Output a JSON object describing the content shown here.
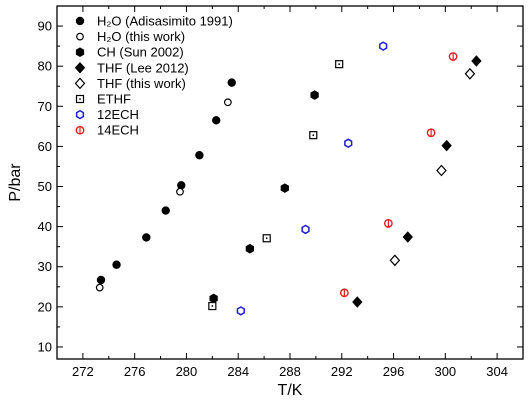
{
  "chart_data": {
    "type": "scatter",
    "xlabel": "T/K",
    "ylabel": "P/bar",
    "xlim": [
      270,
      306
    ],
    "ylim": [
      7,
      95
    ],
    "xticks": [
      272,
      276,
      280,
      284,
      288,
      292,
      296,
      300,
      304
    ],
    "yticks": [
      10,
      20,
      30,
      40,
      50,
      60,
      70,
      80,
      90
    ],
    "grid": false,
    "legend_placement": "top-left",
    "series": [
      {
        "name": "H₂O (Adisasimito 1991)",
        "marker": "circle-filled",
        "color": "#000000",
        "points": [
          [
            273.4,
            26.7
          ],
          [
            274.6,
            30.5
          ],
          [
            276.9,
            37.3
          ],
          [
            278.4,
            44.0
          ],
          [
            279.6,
            50.3
          ],
          [
            281.0,
            57.8
          ],
          [
            282.3,
            66.5
          ],
          [
            283.5,
            75.9
          ]
        ]
      },
      {
        "name": "H₂O (this work)",
        "marker": "circle-open",
        "color": "#000000",
        "points": [
          [
            273.3,
            24.8
          ],
          [
            279.5,
            48.7
          ],
          [
            283.2,
            71.0
          ]
        ]
      },
      {
        "name": "CH (Sun 2002)",
        "marker": "hexagon-filled",
        "color": "#000000",
        "points": [
          [
            282.1,
            22.1
          ],
          [
            284.9,
            34.5
          ],
          [
            287.6,
            49.6
          ],
          [
            289.9,
            72.8
          ]
        ]
      },
      {
        "name": "THF (Lee 2012)",
        "marker": "diamond-filled",
        "color": "#000000",
        "points": [
          [
            293.2,
            21.2
          ],
          [
            297.1,
            37.4
          ],
          [
            300.1,
            60.2
          ],
          [
            302.4,
            81.3
          ]
        ]
      },
      {
        "name": "THF (this work)",
        "marker": "diamond-open",
        "color": "#000000",
        "points": [
          [
            296.1,
            31.6
          ],
          [
            299.7,
            54.0
          ],
          [
            301.9,
            78.1
          ]
        ]
      },
      {
        "name": "ETHF",
        "marker": "square-dot",
        "color": "#000000",
        "points": [
          [
            282.0,
            20.2
          ],
          [
            286.2,
            37.1
          ],
          [
            289.8,
            62.8
          ],
          [
            291.8,
            80.5
          ]
        ]
      },
      {
        "name": "12ECH",
        "marker": "hexagon-open",
        "color": "#1f1fd0",
        "points": [
          [
            284.2,
            19.0
          ],
          [
            289.2,
            39.3
          ],
          [
            292.5,
            60.8
          ],
          [
            295.2,
            85.0
          ]
        ]
      },
      {
        "name": "14ECH",
        "marker": "phi-open",
        "color": "#e02020",
        "points": [
          [
            292.2,
            23.5
          ],
          [
            295.6,
            40.8
          ],
          [
            298.9,
            63.4
          ],
          [
            300.6,
            82.4
          ]
        ]
      }
    ]
  }
}
